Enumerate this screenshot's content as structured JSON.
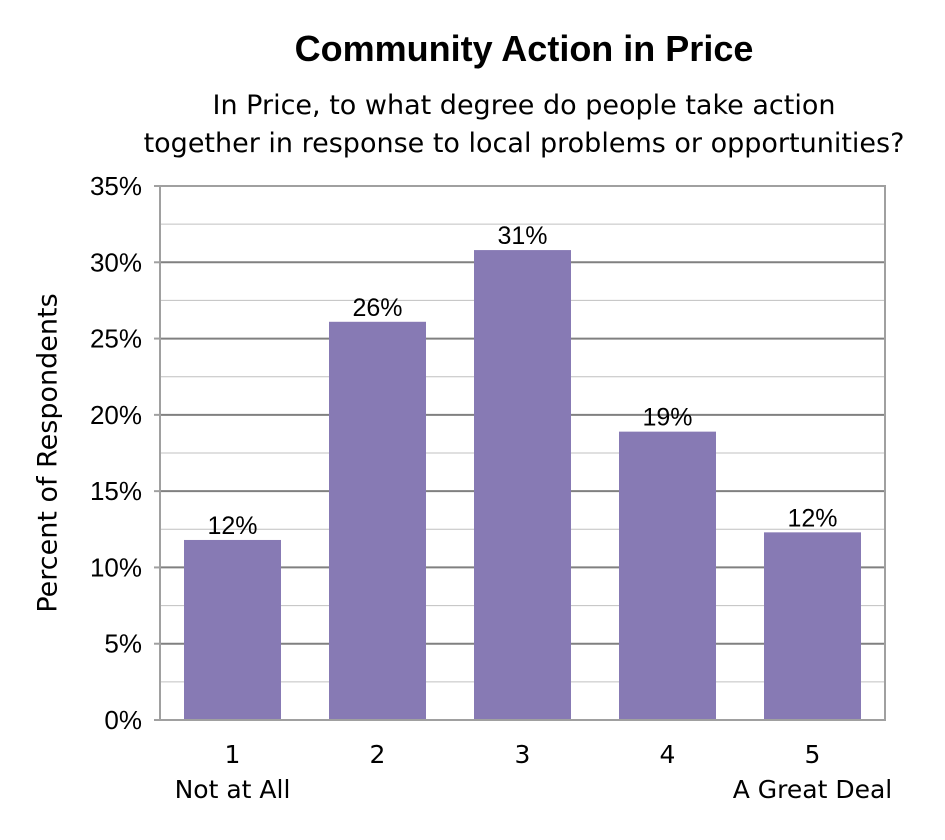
{
  "chart_data": {
    "type": "bar",
    "title": "Community Action in Price",
    "subtitle_lines": [
      "In Price, to what degree do people take action",
      "together in response to local problems or opportunities?"
    ],
    "xlabel": "",
    "ylabel": "Percent of Respondents",
    "categories": [
      "1",
      "2",
      "3",
      "4",
      "5"
    ],
    "category_sublabels": [
      "Not at All",
      "",
      "",
      "",
      "A Great Deal"
    ],
    "values": [
      11.8,
      26.1,
      30.8,
      18.9,
      12.3
    ],
    "data_labels": [
      "12%",
      "26%",
      "31%",
      "19%",
      "12%"
    ],
    "y_ticks": [
      0,
      5,
      10,
      15,
      20,
      25,
      30,
      35
    ],
    "y_tick_labels": [
      "0%",
      "5%",
      "10%",
      "15%",
      "20%",
      "25%",
      "30%",
      "35%"
    ],
    "ylim": [
      0,
      35
    ],
    "grid": true,
    "minor_grid": true,
    "legend": "none",
    "bar_color": "#877AB4",
    "grid_color": "#808080",
    "minor_grid_color": "#C0C0C0",
    "plot_border_color": "#A0A0A0"
  }
}
